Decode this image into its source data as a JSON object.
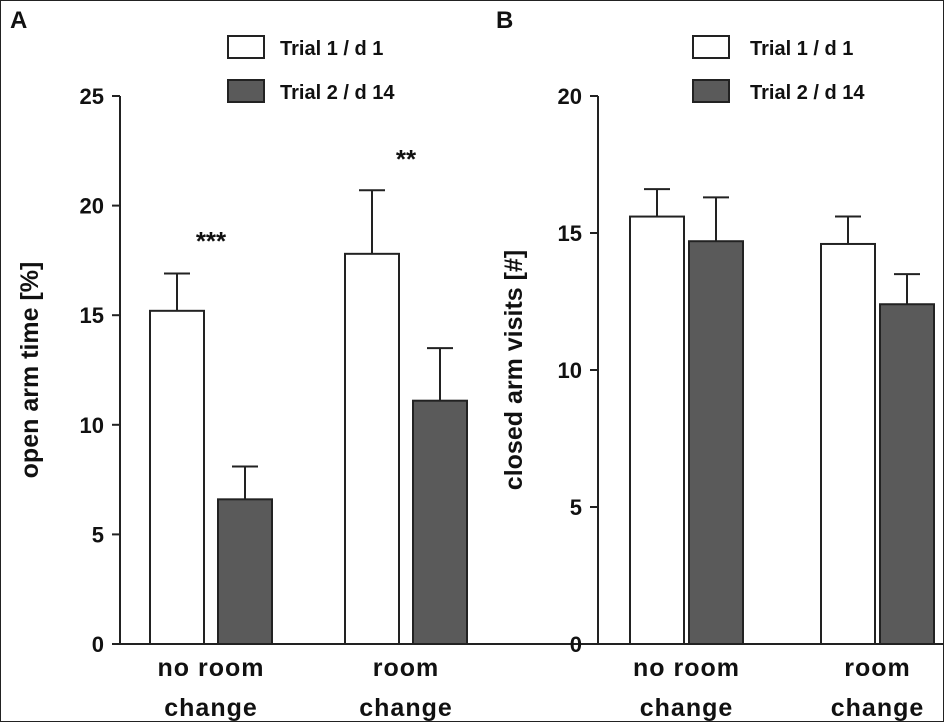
{
  "figure": {
    "colors": {
      "trial1": "#ffffff",
      "trial2": "#5a5a5a",
      "axis": "#222222"
    }
  },
  "chart_data": [
    {
      "type": "bar",
      "panel_label": "A",
      "categories": [
        "no room change",
        "room change"
      ],
      "category_lines": [
        [
          "no room",
          "change"
        ],
        [
          "room",
          "change"
        ]
      ],
      "ylabel": "open arm time [%]",
      "ylim": [
        0,
        25
      ],
      "yticks": [
        0,
        5,
        10,
        15,
        20,
        25
      ],
      "grid": false,
      "legend_position": "top-right",
      "series": [
        {
          "name": "Trial 1 / d 1",
          "color": "#ffffff",
          "values": [
            15.2,
            17.8
          ],
          "errors": [
            1.7,
            2.9
          ]
        },
        {
          "name": "Trial 2 / d 14",
          "color": "#5a5a5a",
          "values": [
            6.6,
            11.1
          ],
          "errors": [
            1.5,
            2.4
          ]
        }
      ],
      "annotations": [
        "***",
        "**"
      ]
    },
    {
      "type": "bar",
      "panel_label": "B",
      "categories": [
        "no room change",
        "room change"
      ],
      "category_lines": [
        [
          "no room",
          "change"
        ],
        [
          "room",
          "change"
        ]
      ],
      "ylabel": "closed arm visits [#]",
      "ylim": [
        0,
        20
      ],
      "yticks": [
        0,
        5,
        10,
        15,
        20
      ],
      "grid": false,
      "legend_position": "top-right",
      "series": [
        {
          "name": "Trial 1 / d 1",
          "color": "#ffffff",
          "values": [
            15.6,
            14.6
          ],
          "errors": [
            1.0,
            1.0
          ]
        },
        {
          "name": "Trial 2 / d 14",
          "color": "#5a5a5a",
          "values": [
            14.7,
            12.4
          ],
          "errors": [
            1.6,
            1.1
          ]
        }
      ],
      "annotations": [
        "",
        ""
      ]
    }
  ]
}
